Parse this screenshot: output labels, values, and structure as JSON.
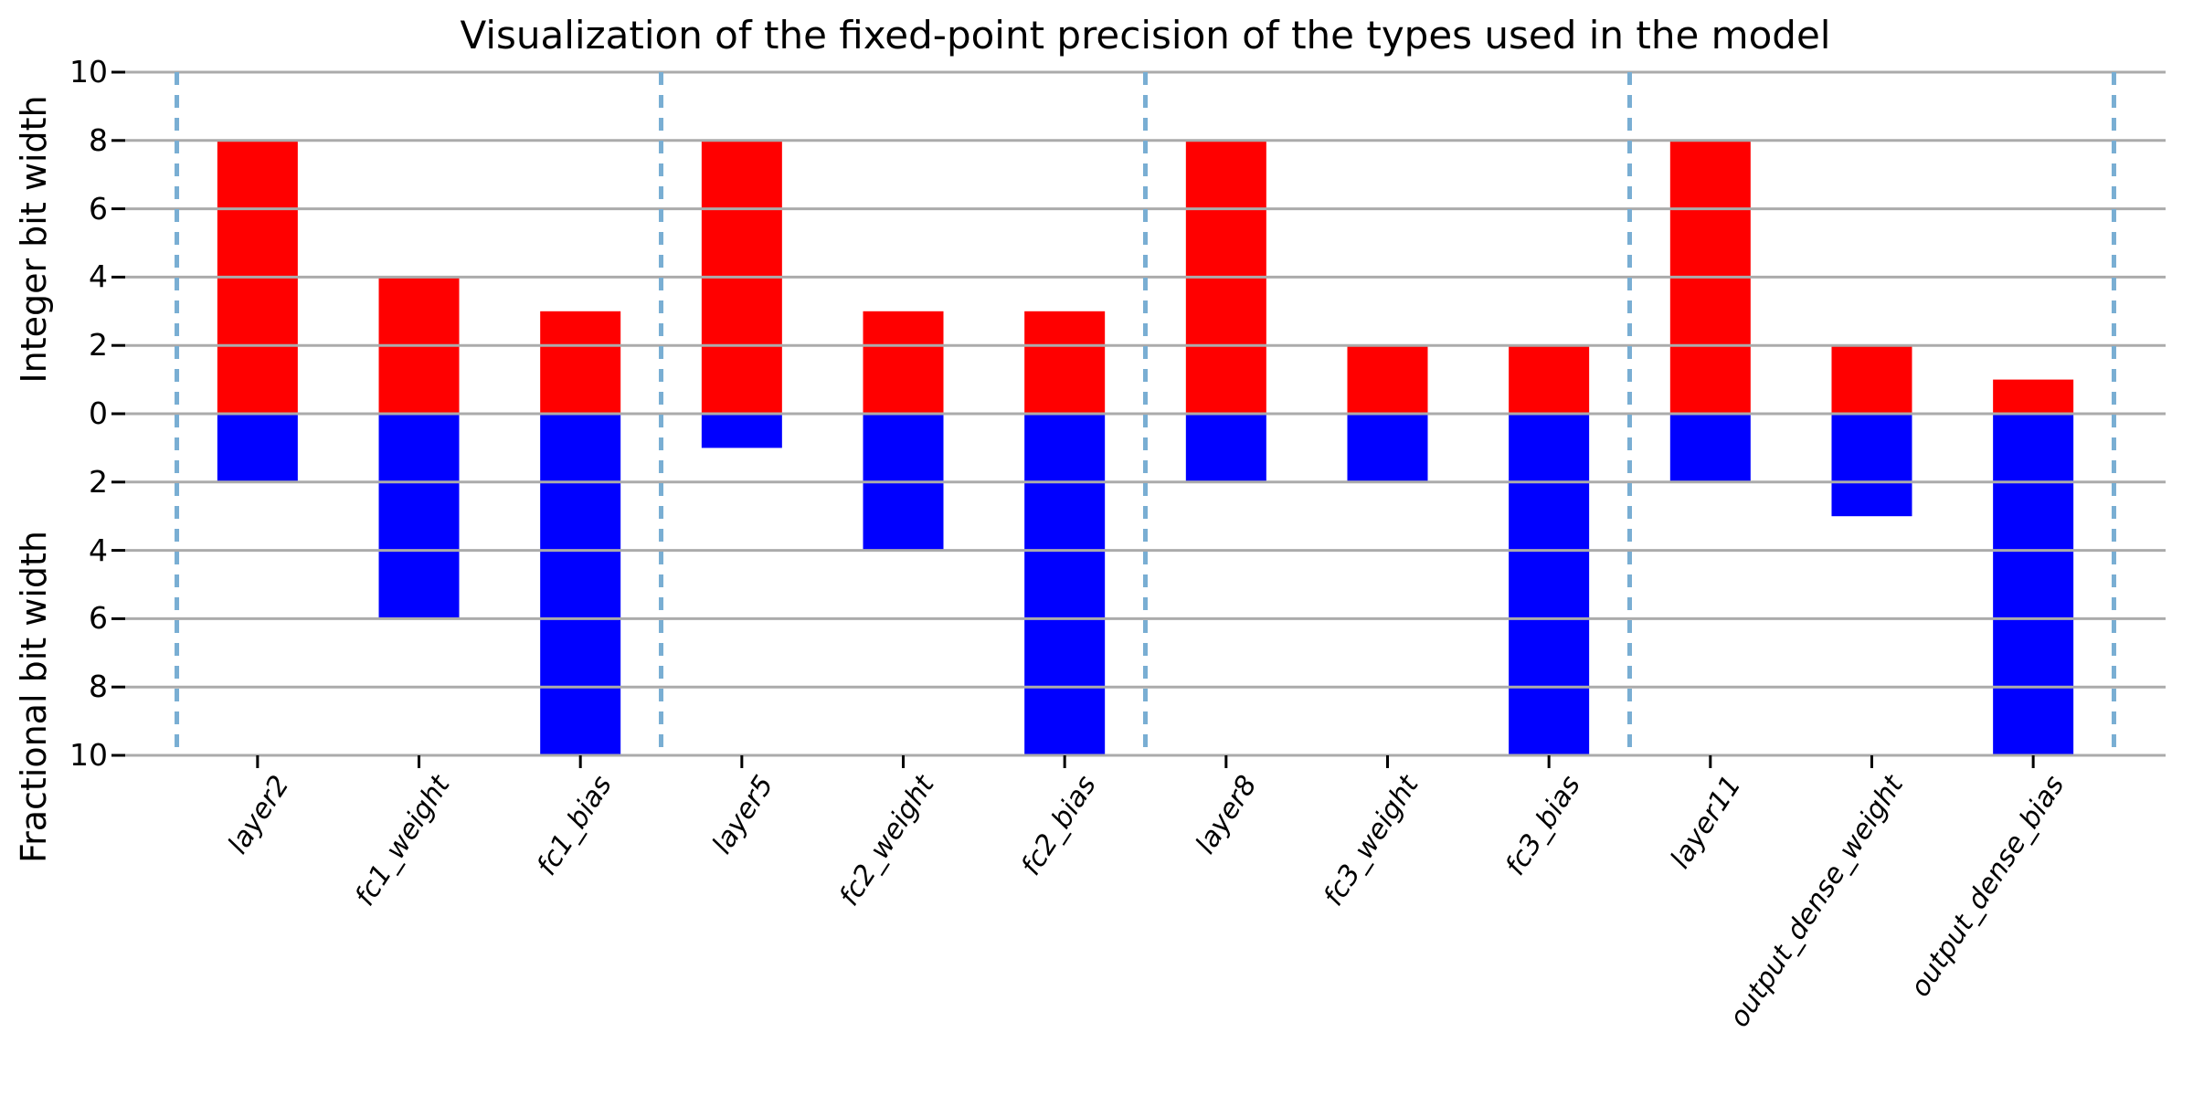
{
  "chart_data": {
    "type": "bar",
    "title": "Visualization of the fixed-point precision of the types used in the model",
    "ylabel_top": "Integer bit width",
    "ylabel_bottom": "Fractional bit width",
    "xlabel": "",
    "categories": [
      "layer2",
      "fc1_weight",
      "fc1_bias",
      "layer5",
      "fc2_weight",
      "fc2_bias",
      "layer8",
      "fc3_weight",
      "fc3_bias",
      "layer11",
      "output_dense_weight",
      "output_dense_bias"
    ],
    "series": [
      {
        "name": "Integer bit width",
        "direction": "up",
        "color": "#ff0000",
        "values": [
          8,
          4,
          3,
          8,
          3,
          3,
          8,
          2,
          2,
          8,
          2,
          1
        ]
      },
      {
        "name": "Fractional bit width",
        "direction": "down",
        "color": "#0000ff",
        "values": [
          2,
          6,
          10,
          1,
          4,
          10,
          2,
          2,
          10,
          2,
          3,
          10
        ]
      }
    ],
    "ylim": [
      -10,
      10
    ],
    "yticks": [
      {
        "pos": 10,
        "label": "10"
      },
      {
        "pos": 8,
        "label": "8"
      },
      {
        "pos": 6,
        "label": "6"
      },
      {
        "pos": 4,
        "label": "4"
      },
      {
        "pos": 2,
        "label": "2"
      },
      {
        "pos": 0,
        "label": "0"
      },
      {
        "pos": -2,
        "label": "2"
      },
      {
        "pos": -4,
        "label": "4"
      },
      {
        "pos": -6,
        "label": "6"
      },
      {
        "pos": -8,
        "label": "8"
      },
      {
        "pos": -10,
        "label": "10"
      }
    ],
    "group_separators": [
      -0.5,
      2.5,
      5.5,
      8.5,
      11.5
    ],
    "grid": true,
    "legend": false,
    "styles": {
      "bar_up_color": "#ff0000",
      "bar_down_color": "#0000ff",
      "separator_color": "#79aed3",
      "grid_color": "#ababab",
      "tick_color": "#000000",
      "background": "#ffffff"
    }
  }
}
